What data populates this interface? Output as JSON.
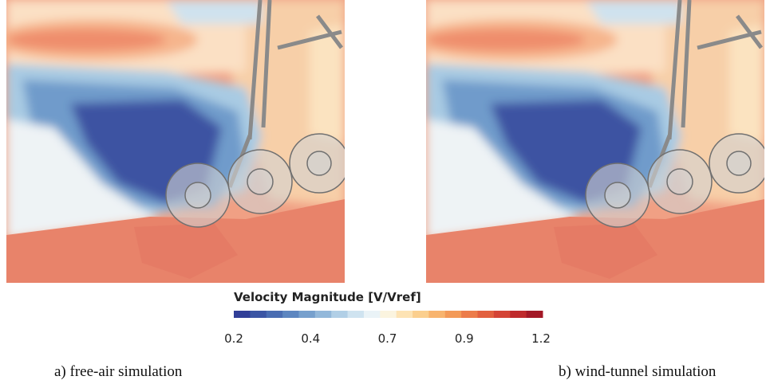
{
  "figure": {
    "panels": [
      {
        "caption": "a) free-air simulation"
      },
      {
        "caption": "b) wind-tunnel simulation"
      }
    ],
    "colorbar": {
      "title": "Velocity Magnitude [V/Vref]",
      "ticks": [
        0.2,
        0.4,
        0.7,
        0.9,
        1.2
      ]
    }
  }
}
